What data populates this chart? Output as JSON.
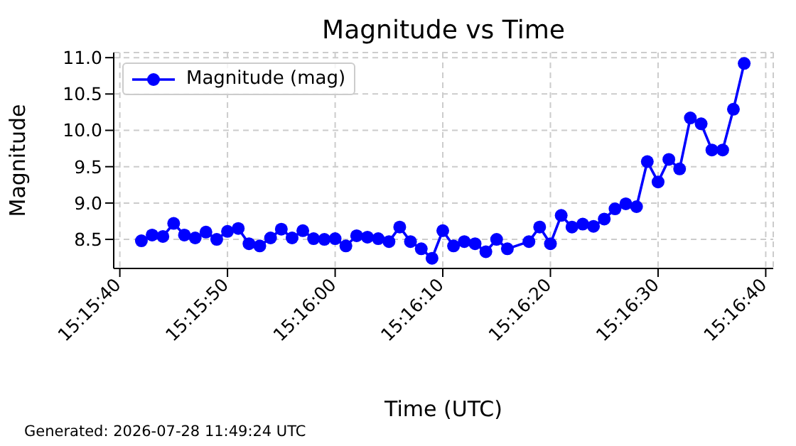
{
  "chart_data": {
    "type": "line",
    "title": "Magnitude vs Time",
    "xlabel": "Time (UTC)",
    "ylabel": "Magnitude",
    "annotations": [
      "Generated: 2026-07-28 11:49:24 UTC"
    ],
    "x": [
      15.261667,
      15.261944,
      15.262222,
      15.2625,
      15.262778,
      15.263056,
      15.263333,
      15.263611,
      15.263889,
      15.264167,
      15.264444,
      15.264722,
      15.265,
      15.265278,
      15.265556,
      15.265833,
      15.266111,
      15.266389,
      15.266667,
      15.266944,
      15.267222,
      15.2675,
      15.267778,
      15.268056,
      15.268333,
      15.268611,
      15.268889,
      15.269167,
      15.269444,
      15.269722,
      15.27,
      15.270278,
      15.270556,
      15.270833,
      15.271111,
      15.271667,
      15.271944,
      15.272222,
      15.2725,
      15.272778,
      15.273056,
      15.273333,
      15.273611,
      15.273889,
      15.274167,
      15.274444,
      15.274722,
      15.275,
      15.275278,
      15.275556,
      15.275833,
      15.276111,
      15.276389,
      15.276667,
      15.276944,
      15.277222
    ],
    "series": [
      {
        "name": "Magnitude (mag)",
        "color": "#0000ff",
        "values": [
          8.48,
          8.56,
          8.54,
          8.72,
          8.56,
          8.52,
          8.6,
          8.5,
          8.61,
          8.65,
          8.44,
          8.41,
          8.52,
          8.64,
          8.52,
          8.62,
          8.51,
          8.5,
          8.51,
          8.41,
          8.55,
          8.53,
          8.51,
          8.47,
          8.67,
          8.47,
          8.37,
          8.24,
          8.62,
          8.41,
          8.47,
          8.44,
          8.33,
          8.5,
          8.37,
          8.47,
          8.67,
          8.44,
          8.83,
          8.67,
          8.71,
          8.68,
          8.78,
          8.92,
          8.99,
          8.95,
          9.57,
          9.29,
          9.6,
          9.47,
          10.17,
          10.09,
          9.73,
          9.73,
          10.29,
          10.92
        ]
      }
    ],
    "xlim": [
      15.260953,
      15.277972
    ],
    "xticks": [
      {
        "value": 15.261111,
        "label": "15:15:40"
      },
      {
        "value": 15.263889,
        "label": "15:15:50"
      },
      {
        "value": 15.266667,
        "label": "15:16:00"
      },
      {
        "value": 15.269444,
        "label": "15:16:10"
      },
      {
        "value": 15.272222,
        "label": "15:16:20"
      },
      {
        "value": 15.275,
        "label": "15:16:30"
      },
      {
        "value": 15.277778,
        "label": "15:16:40"
      }
    ],
    "ylim": [
      8.1,
      11.07
    ],
    "yticks": [
      {
        "value": 8.5,
        "label": "8.5"
      },
      {
        "value": 9,
        "label": "9.0"
      },
      {
        "value": 9.5,
        "label": "9.5"
      },
      {
        "value": 10,
        "label": "10.0"
      },
      {
        "value": 10.5,
        "label": "10.5"
      },
      {
        "value": 11,
        "label": "11.0"
      }
    ],
    "grid": true,
    "legend": "top left",
    "marker": "circle",
    "line_style": "solid"
  }
}
